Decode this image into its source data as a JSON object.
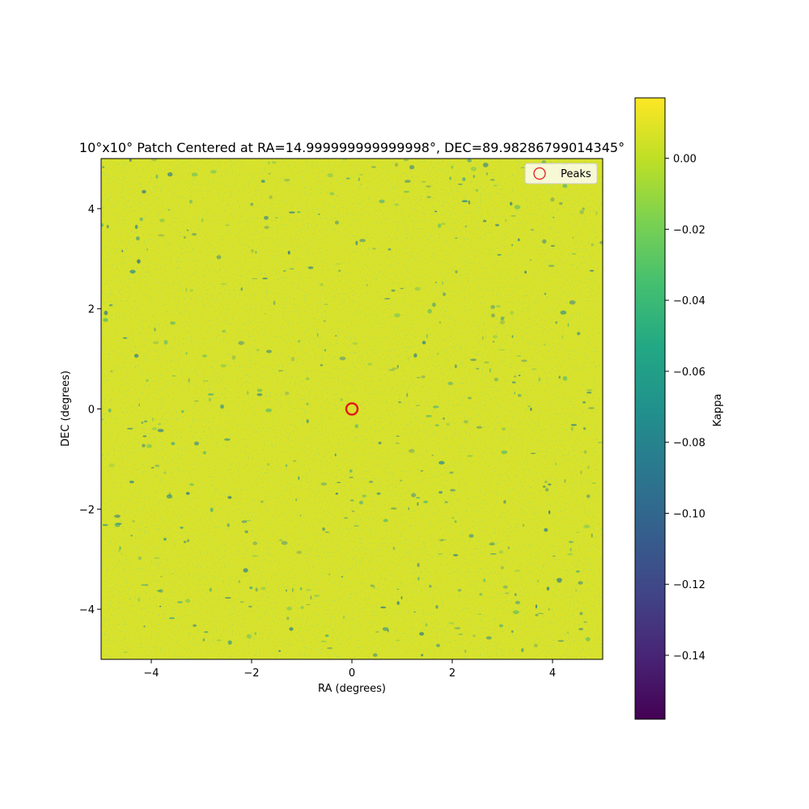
{
  "chart_data": {
    "type": "heatmap",
    "title": "10°x10° Patch Centered at RA=14.999999999999998°, DEC=89.98286799014345°",
    "xlabel": "RA (degrees)",
    "ylabel": "DEC (degrees)",
    "xlim": [
      -5,
      5
    ],
    "ylim": [
      -5,
      5
    ],
    "xticks": [
      -4,
      -2,
      0,
      2,
      4
    ],
    "xtick_labels": [
      "−4",
      "−2",
      "0",
      "2",
      "4"
    ],
    "yticks": [
      -4,
      -2,
      0,
      2,
      4
    ],
    "ytick_labels": [
      "−4",
      "−2",
      "0",
      "2",
      "4"
    ],
    "grid": false,
    "colormap": "viridis",
    "colorbar": {
      "label": "Kappa",
      "range": [
        -0.158,
        0.017
      ],
      "ticks": [
        0.0,
        -0.02,
        -0.04,
        -0.06,
        -0.08,
        -0.1,
        -0.12,
        -0.14
      ],
      "tick_labels": [
        "0.00",
        "−0.02",
        "−0.04",
        "−0.06",
        "−0.08",
        "−0.10",
        "−0.12",
        "−0.14"
      ]
    },
    "field_description": "mostly near 0.00 (yellow) with scattered negative filaments (green/blue)",
    "peaks": {
      "name": "Peaks",
      "marker": "open circle",
      "color": "#e31a1c",
      "points": [
        {
          "x": 0.0,
          "y": 0.0
        }
      ]
    },
    "legend_placement": "upper-right"
  }
}
